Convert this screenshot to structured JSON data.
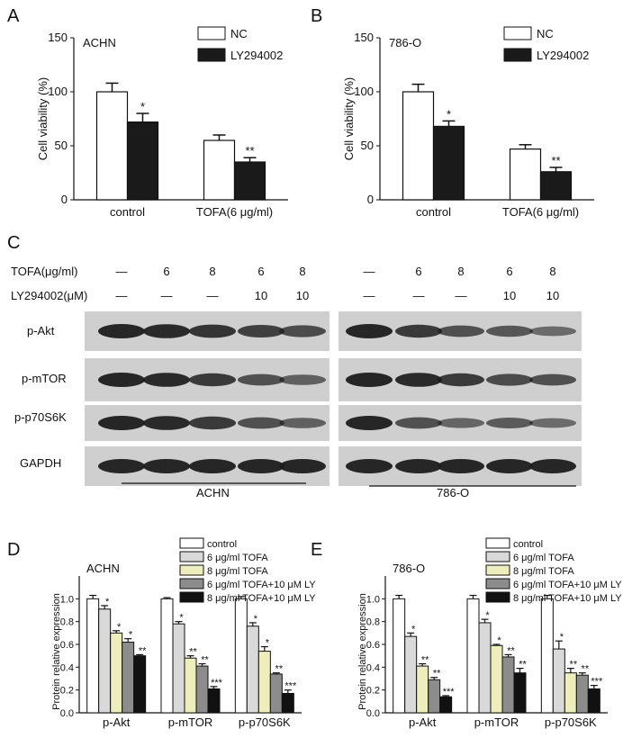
{
  "panels": {
    "A": {
      "label": "A",
      "cell_line": "ACHN",
      "ylabel": "Cell viability (%)",
      "legend": [
        {
          "name": "NC",
          "color": "#ffffff"
        },
        {
          "name": "LY294002",
          "color": "#1a1a1a"
        }
      ],
      "yticks": [
        "0",
        "50",
        "100",
        "150"
      ]
    },
    "B": {
      "label": "B",
      "cell_line": "786-O",
      "ylabel": "Cell viability (%)",
      "legend": [
        {
          "name": "NC",
          "color": "#ffffff"
        },
        {
          "name": "LY294002",
          "color": "#1a1a1a"
        }
      ],
      "yticks": [
        "0",
        "50",
        "100",
        "150"
      ]
    },
    "C": {
      "label": "C",
      "row_labels": [
        "TOFA(μg/ml)",
        "LY294002(μM)"
      ],
      "tofa": [
        "—",
        "6",
        "8",
        "6",
        "8"
      ],
      "ly": [
        "—",
        "—",
        "—",
        "10",
        "10"
      ],
      "proteins": [
        "p-Akt",
        "p-mTOR",
        "p-p70S6K",
        "GAPDH"
      ],
      "groups": [
        "ACHN",
        "786-O"
      ]
    },
    "D": {
      "label": "D",
      "cell_line": "ACHN",
      "ylabel": "Protein relative expression",
      "yticks": [
        "0.0",
        "0.2",
        "0.4",
        "0.6",
        "0.8",
        "1.0"
      ]
    },
    "E": {
      "label": "E",
      "cell_line": "786-O",
      "ylabel": "Protein relative expression",
      "yticks": [
        "0.0",
        "0.2",
        "0.4",
        "0.6",
        "0.8",
        "1.0"
      ]
    }
  },
  "bar_legend": [
    {
      "name": "control",
      "color": "#ffffff"
    },
    {
      "name": "6 μg/ml TOFA",
      "color": "#d9d9d9"
    },
    {
      "name": "8 μg/ml TOFA",
      "color": "#eeeebb"
    },
    {
      "name": "6 μg/ml TOFA+10 μM LY",
      "color": "#8c8c8c"
    },
    {
      "name": "8 μg/ml TOFA+10 μM LY",
      "color": "#111111"
    }
  ],
  "chart_data": [
    {
      "type": "bar",
      "panel": "A",
      "title": "ACHN",
      "ylabel": "Cell viability (%)",
      "ylim": [
        0,
        150
      ],
      "categories": [
        "control",
        "TOFA(6 μg/ml)"
      ],
      "series": [
        {
          "name": "NC",
          "values": [
            100,
            55
          ],
          "errors": [
            8,
            5
          ],
          "sig": [
            "",
            ""
          ]
        },
        {
          "name": "LY294002",
          "values": [
            72,
            35
          ],
          "errors": [
            8,
            4
          ],
          "sig": [
            "*",
            "**"
          ]
        }
      ]
    },
    {
      "type": "bar",
      "panel": "B",
      "title": "786-O",
      "ylabel": "Cell viability (%)",
      "ylim": [
        0,
        150
      ],
      "categories": [
        "control",
        "TOFA(6 μg/ml)"
      ],
      "series": [
        {
          "name": "NC",
          "values": [
            100,
            47
          ],
          "errors": [
            7,
            4
          ],
          "sig": [
            "",
            ""
          ]
        },
        {
          "name": "LY294002",
          "values": [
            68,
            26
          ],
          "errors": [
            5,
            4
          ],
          "sig": [
            "*",
            "**"
          ]
        }
      ]
    },
    {
      "type": "bar",
      "panel": "D",
      "title": "ACHN",
      "ylabel": "Protein relative expression",
      "ylim": [
        0,
        1.2
      ],
      "categories": [
        "p-Akt",
        "p-mTOR",
        "p-p70S6K"
      ],
      "series": [
        {
          "name": "control",
          "values": [
            1.0,
            1.0,
            1.0
          ],
          "errors": [
            0.03,
            0.01,
            0.02
          ],
          "sig": [
            "",
            "",
            ""
          ]
        },
        {
          "name": "6 μg/ml TOFA",
          "values": [
            0.91,
            0.78,
            0.76
          ],
          "errors": [
            0.03,
            0.02,
            0.03
          ],
          "sig": [
            "*",
            "*",
            "*"
          ]
        },
        {
          "name": "8 μg/ml TOFA",
          "values": [
            0.7,
            0.48,
            0.54
          ],
          "errors": [
            0.02,
            0.02,
            0.04
          ],
          "sig": [
            "*",
            "**",
            "*"
          ]
        },
        {
          "name": "6 μg/ml TOFA+10 μM LY",
          "values": [
            0.62,
            0.41,
            0.34
          ],
          "errors": [
            0.03,
            0.02,
            0.01
          ],
          "sig": [
            "*",
            "**",
            "**"
          ]
        },
        {
          "name": "8 μg/ml TOFA+10 μM LY",
          "values": [
            0.5,
            0.21,
            0.17
          ],
          "errors": [
            0.01,
            0.02,
            0.03
          ],
          "sig": [
            "**",
            "***",
            "***"
          ]
        }
      ]
    },
    {
      "type": "bar",
      "panel": "E",
      "title": "786-O",
      "ylabel": "Protein relative expression",
      "ylim": [
        0,
        1.2
      ],
      "categories": [
        "p-Akt",
        "p-mTOR",
        "p-p70S6K"
      ],
      "series": [
        {
          "name": "control",
          "values": [
            1.0,
            1.0,
            1.0
          ],
          "errors": [
            0.03,
            0.03,
            0.03
          ],
          "sig": [
            "",
            "",
            ""
          ]
        },
        {
          "name": "6 μg/ml TOFA",
          "values": [
            0.67,
            0.79,
            0.56
          ],
          "errors": [
            0.03,
            0.03,
            0.07
          ],
          "sig": [
            "*",
            "*",
            "*"
          ]
        },
        {
          "name": "8 μg/ml TOFA",
          "values": [
            0.41,
            0.59,
            0.35
          ],
          "errors": [
            0.02,
            0.01,
            0.04
          ],
          "sig": [
            "**",
            "*",
            "**"
          ]
        },
        {
          "name": "6 μg/ml TOFA+10 μM LY",
          "values": [
            0.29,
            0.49,
            0.33
          ],
          "errors": [
            0.02,
            0.02,
            0.02
          ],
          "sig": [
            "**",
            "**",
            "**"
          ]
        },
        {
          "name": "8 μg/ml TOFA+10 μM LY",
          "values": [
            0.14,
            0.35,
            0.21
          ],
          "errors": [
            0.01,
            0.04,
            0.03
          ],
          "sig": [
            "***",
            "**",
            "***"
          ]
        }
      ]
    }
  ]
}
